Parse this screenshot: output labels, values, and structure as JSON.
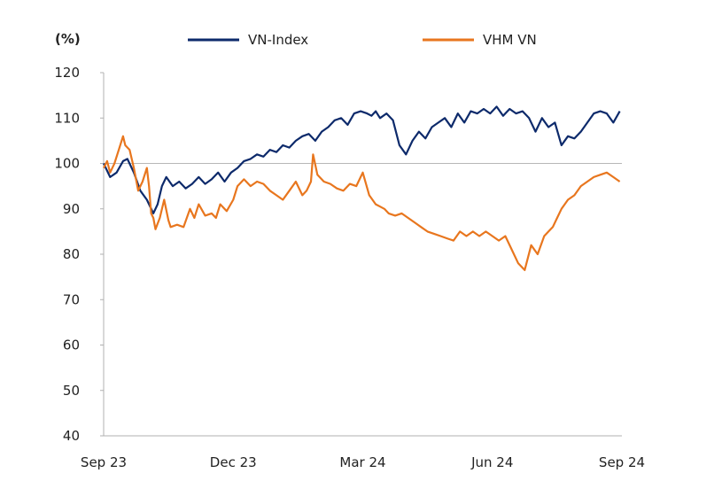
{
  "chart_data": {
    "type": "line",
    "unit_label": "(%)",
    "ylim": [
      40,
      120
    ],
    "yticks": [
      40,
      50,
      60,
      70,
      80,
      90,
      100,
      110,
      120
    ],
    "xlim": [
      0,
      12
    ],
    "xticks": [
      {
        "x": 0,
        "label": "Sep 23"
      },
      {
        "x": 3,
        "label": "Dec 23"
      },
      {
        "x": 6,
        "label": "Mar 24"
      },
      {
        "x": 9,
        "label": "Jun 24"
      },
      {
        "x": 12,
        "label": "Sep 24"
      }
    ],
    "baseline": 100,
    "grid": false,
    "legend_position": "top",
    "series": [
      {
        "name": "VN-Index",
        "color": "#0d2a6b",
        "x": [
          0,
          0.15,
          0.3,
          0.45,
          0.55,
          0.7,
          0.85,
          1.0,
          1.15,
          1.25,
          1.35,
          1.45,
          1.6,
          1.75,
          1.9,
          2.05,
          2.2,
          2.35,
          2.5,
          2.65,
          2.8,
          2.95,
          3.1,
          3.25,
          3.4,
          3.55,
          3.7,
          3.85,
          4.0,
          4.15,
          4.3,
          4.45,
          4.6,
          4.75,
          4.9,
          5.05,
          5.2,
          5.35,
          5.5,
          5.65,
          5.8,
          5.95,
          6.1,
          6.2,
          6.3,
          6.4,
          6.55,
          6.7,
          6.85,
          7.0,
          7.15,
          7.3,
          7.45,
          7.6,
          7.75,
          7.9,
          8.05,
          8.2,
          8.35,
          8.5,
          8.65,
          8.8,
          8.95,
          9.1,
          9.25,
          9.4,
          9.55,
          9.7,
          9.85,
          10.0,
          10.15,
          10.3,
          10.45,
          10.6,
          10.75,
          10.9,
          11.05,
          11.2,
          11.35,
          11.5,
          11.65,
          11.8,
          11.95
        ],
        "values": [
          100,
          97,
          98,
          100.5,
          101,
          98,
          94,
          92,
          89,
          91,
          95,
          97,
          95,
          96,
          94.5,
          95.5,
          97,
          95.5,
          96.5,
          98,
          96,
          98,
          99,
          100.5,
          101,
          102,
          101.5,
          103,
          102.5,
          104,
          103.5,
          105,
          106,
          106.5,
          105,
          107,
          108,
          109.5,
          110,
          108.5,
          111,
          111.5,
          111,
          110.5,
          111.5,
          110,
          111,
          109.5,
          104,
          102,
          105,
          107,
          105.5,
          108,
          109,
          110,
          108,
          111,
          109,
          111.5,
          111,
          112,
          111,
          112.5,
          110.5,
          112,
          111,
          111.5,
          110,
          107,
          110,
          108,
          109,
          104,
          106,
          105.5,
          107,
          109,
          111,
          111.5,
          111,
          109,
          111.5
        ]
      },
      {
        "name": "VHM VN",
        "color": "#e8761e",
        "x": [
          0,
          0.08,
          0.15,
          0.25,
          0.35,
          0.45,
          0.5,
          0.6,
          0.7,
          0.8,
          0.9,
          1.0,
          1.05,
          1.1,
          1.15,
          1.2,
          1.3,
          1.4,
          1.5,
          1.55,
          1.7,
          1.85,
          2.0,
          2.1,
          2.2,
          2.35,
          2.5,
          2.6,
          2.7,
          2.85,
          3.0,
          3.1,
          3.25,
          3.4,
          3.55,
          3.7,
          3.85,
          4.0,
          4.15,
          4.3,
          4.45,
          4.6,
          4.7,
          4.8,
          4.85,
          4.95,
          5.1,
          5.25,
          5.4,
          5.55,
          5.7,
          5.85,
          6.0,
          6.15,
          6.3,
          6.4,
          6.5,
          6.6,
          6.75,
          6.9,
          7.05,
          7.2,
          7.35,
          7.5,
          7.65,
          7.8,
          7.95,
          8.1,
          8.25,
          8.4,
          8.55,
          8.7,
          8.85,
          9.0,
          9.15,
          9.3,
          9.45,
          9.6,
          9.75,
          9.9,
          10.05,
          10.2,
          10.3,
          10.4,
          10.5,
          10.6,
          10.75,
          10.9,
          11.05,
          11.2,
          11.35,
          11.5,
          11.65,
          11.8,
          11.95
        ],
        "values": [
          99,
          100.5,
          98,
          100,
          103,
          106,
          104,
          103,
          99,
          94,
          96,
          99,
          95,
          89,
          88,
          85.5,
          88,
          92,
          87.5,
          86,
          86.5,
          86,
          90,
          88,
          91,
          88.5,
          89,
          88,
          91,
          89.5,
          92,
          95,
          96.5,
          95,
          96,
          95.5,
          94,
          93,
          92,
          94,
          96,
          93,
          94,
          96,
          102,
          97.5,
          96,
          95.5,
          94.5,
          94,
          95.5,
          95,
          98,
          93,
          91,
          90.5,
          90,
          89,
          88.5,
          89,
          88,
          87,
          86,
          85,
          84.5,
          84,
          83.5,
          83,
          85,
          84,
          85,
          84,
          85,
          84,
          83,
          84,
          81,
          78,
          76.5,
          82,
          80,
          84,
          85,
          86,
          88,
          90,
          92,
          93,
          95,
          96,
          97,
          97.5,
          98,
          97,
          96
        ]
      }
    ]
  }
}
